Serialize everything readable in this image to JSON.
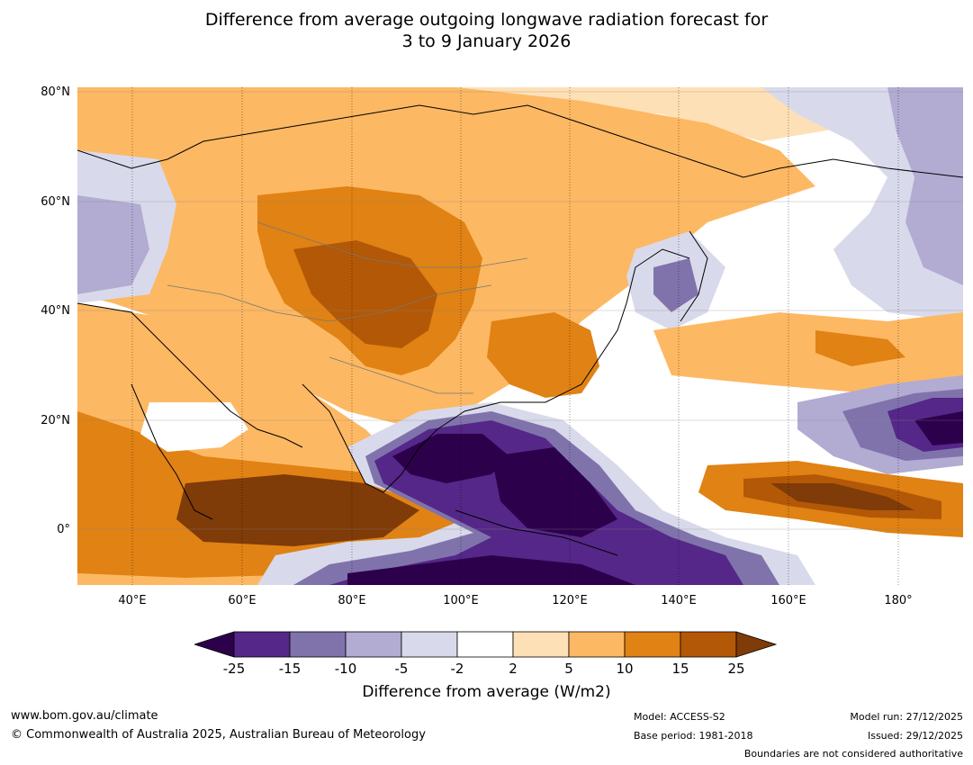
{
  "title_line1": "Difference from average outgoing longwave radiation forecast for",
  "title_line2": "3 to 9 January 2026",
  "map": {
    "lat_labels": [
      "80°N",
      "60°N",
      "40°N",
      "20°N",
      "0°"
    ],
    "lon_labels": [
      "40°E",
      "60°E",
      "80°E",
      "100°E",
      "120°E",
      "140°E",
      "160°E",
      "180°"
    ]
  },
  "colorbar": {
    "ticks": [
      "-25",
      "-15",
      "-10",
      "-5",
      "-2",
      "2",
      "5",
      "10",
      "15",
      "25"
    ],
    "colors": [
      "#2d004b",
      "#542788",
      "#8073ac",
      "#b2abd2",
      "#d8daeb",
      "#ffffff",
      "#fee0b6",
      "#fdb863",
      "#e08214",
      "#b35806",
      "#7f3b08"
    ],
    "label": "Difference from average (W/m2)"
  },
  "footer": {
    "website": "www.bom.gov.au/climate",
    "copyright": "© Commonwealth of Australia 2025, Australian Bureau of Meteorology",
    "model": "Model: ACCESS-S2",
    "base_period": "Base period: 1981-2018",
    "model_run": "Model run: 27/12/2025",
    "issued": "Issued: 29/12/2025",
    "disclaimer": "Boundaries are not considered authoritative"
  }
}
